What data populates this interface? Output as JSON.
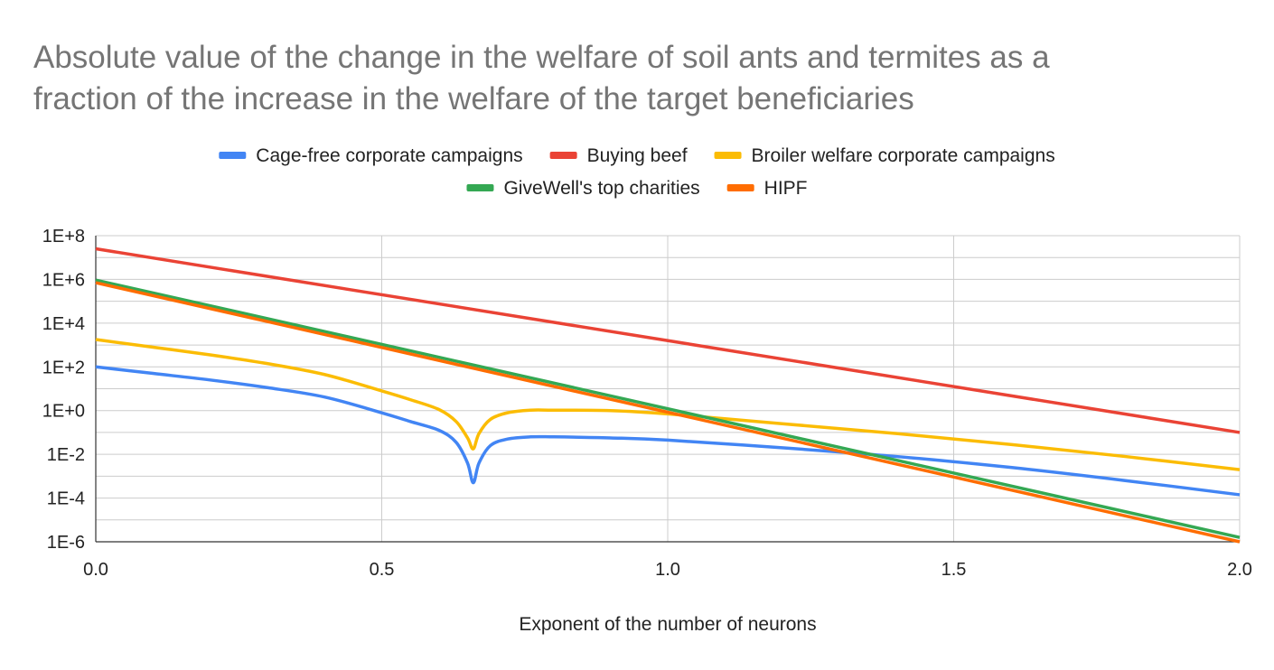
{
  "chart_data": {
    "type": "line",
    "title_lines": [
      "Absolute value of the change in the welfare of soil ants and termites as a",
      "fraction of the increase in the welfare of the target beneficiaries"
    ],
    "xlabel": "Exponent of the number of neurons",
    "ylabel": "",
    "xlim": [
      0,
      2
    ],
    "x_ticks": [
      "0.0",
      "0.5",
      "1.0",
      "1.5",
      "2.0"
    ],
    "y_scale": "log",
    "ylim_log10": [
      -6,
      8
    ],
    "y_ticks": [
      "1E+8",
      "1E+6",
      "1E+4",
      "1E+2",
      "1E+0",
      "1E-2",
      "1E-4",
      "1E-6"
    ],
    "grid": true,
    "legend_position": "top",
    "series": [
      {
        "name": "Cage-free corporate campaigns",
        "color": "#4285f4",
        "x": [
          0,
          0.1,
          0.2,
          0.3,
          0.4,
          0.5,
          0.55,
          0.6,
          0.63,
          0.65,
          0.66,
          0.67,
          0.69,
          0.72,
          0.76,
          0.8,
          0.9,
          1.0,
          1.2,
          1.4,
          1.6,
          1.8,
          2.0
        ],
        "log10_values": [
          2.0,
          1.7,
          1.4,
          1.05,
          0.62,
          -0.1,
          -0.5,
          -0.9,
          -1.45,
          -2.4,
          -3.3,
          -2.4,
          -1.6,
          -1.3,
          -1.2,
          -1.2,
          -1.25,
          -1.35,
          -1.7,
          -2.1,
          -2.6,
          -3.2,
          -3.85
        ]
      },
      {
        "name": "Buying beef",
        "color": "#ea4335",
        "x": [
          0,
          2
        ],
        "log10_values": [
          7.4,
          -1.0
        ]
      },
      {
        "name": "Broiler welfare corporate campaigns",
        "color": "#fbbc04",
        "x": [
          0,
          0.1,
          0.2,
          0.3,
          0.4,
          0.5,
          0.55,
          0.6,
          0.63,
          0.65,
          0.66,
          0.67,
          0.69,
          0.72,
          0.76,
          0.8,
          0.9,
          1.0,
          1.2,
          1.4,
          1.6,
          1.8,
          2.0
        ],
        "log10_values": [
          3.25,
          2.9,
          2.55,
          2.15,
          1.65,
          0.9,
          0.5,
          0.05,
          -0.5,
          -1.25,
          -1.75,
          -1.05,
          -0.4,
          -0.1,
          0.02,
          0.02,
          0.0,
          -0.15,
          -0.6,
          -1.05,
          -1.55,
          -2.1,
          -2.7
        ]
      },
      {
        "name": "GiveWell's top charities",
        "color": "#34a853",
        "x": [
          0,
          2
        ],
        "log10_values": [
          5.97,
          -5.8
        ]
      },
      {
        "name": "HIPF",
        "color": "#ff6d01",
        "x": [
          0,
          2
        ],
        "log10_values": [
          5.85,
          -6.0
        ]
      }
    ]
  }
}
